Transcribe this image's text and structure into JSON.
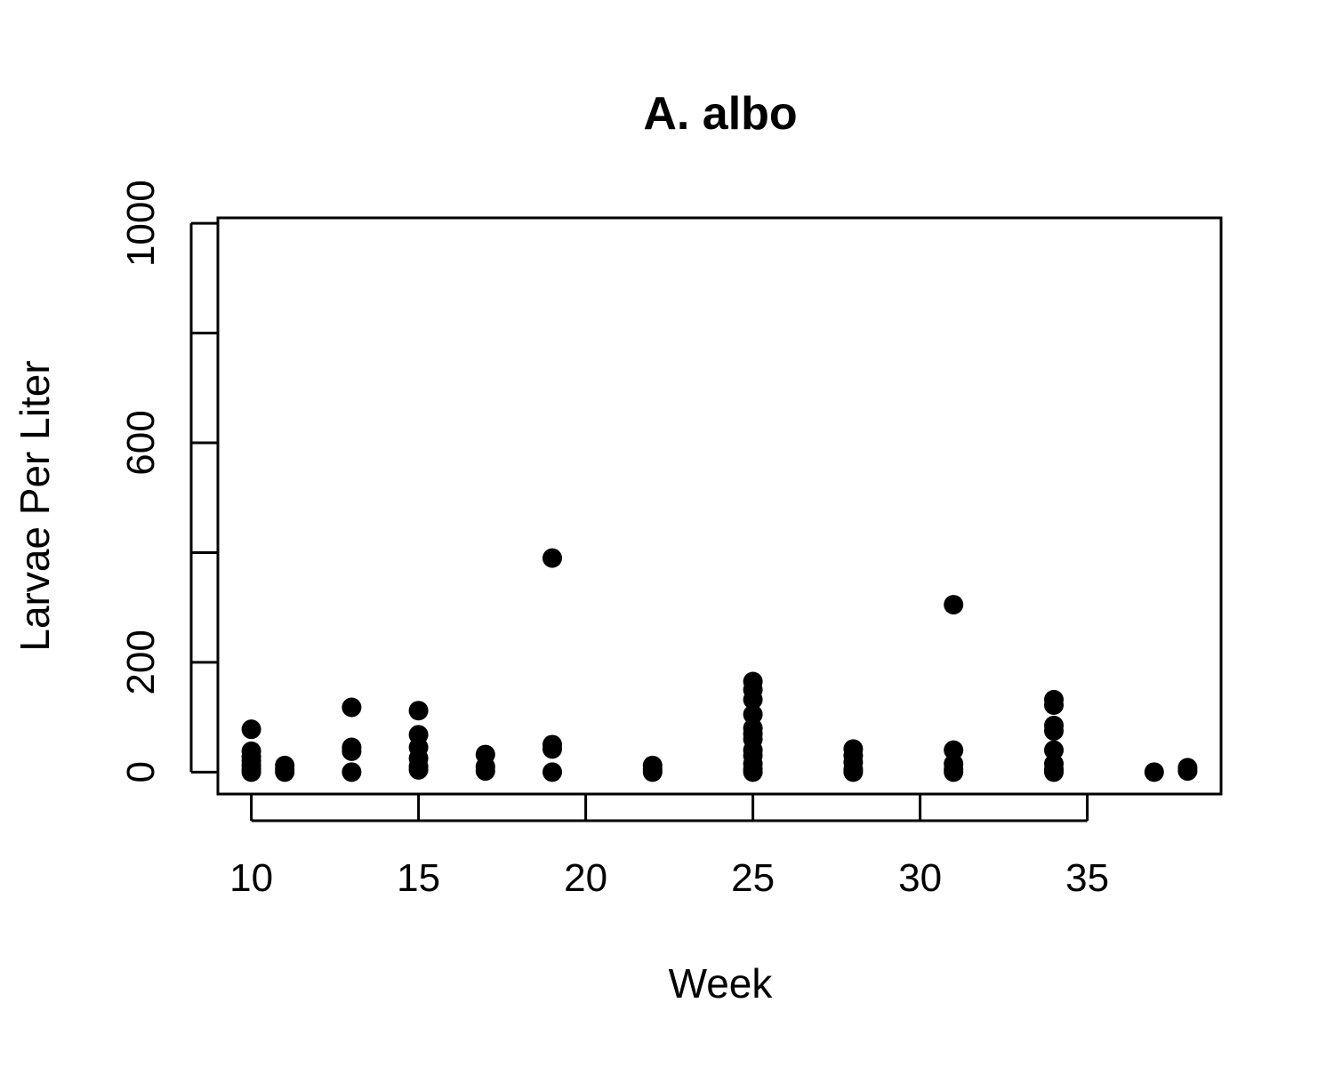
{
  "chart_data": {
    "type": "scatter",
    "title": "A. albo",
    "xlabel": "Week",
    "ylabel": "Larvae Per Liter",
    "xlim": [
      9,
      39
    ],
    "ylim": [
      -40,
      1010
    ],
    "xticks": [
      10,
      15,
      20,
      25,
      30,
      35
    ],
    "yticks": [
      0,
      200,
      400,
      600,
      800,
      1000
    ],
    "xtick_labels": [
      "10",
      "15",
      "20",
      "25",
      "30",
      "35"
    ],
    "ytick_labels": [
      "0",
      "200",
      "",
      "600",
      "",
      "1000"
    ],
    "grid": false,
    "marker_color": "#000000",
    "points": [
      {
        "x": 10,
        "y": 78
      },
      {
        "x": 10,
        "y": 38
      },
      {
        "x": 10,
        "y": 28
      },
      {
        "x": 10,
        "y": 20
      },
      {
        "x": 10,
        "y": 12
      },
      {
        "x": 10,
        "y": 5
      },
      {
        "x": 10,
        "y": 0
      },
      {
        "x": 11,
        "y": 12
      },
      {
        "x": 11,
        "y": 5
      },
      {
        "x": 11,
        "y": 0
      },
      {
        "x": 13,
        "y": 118
      },
      {
        "x": 13,
        "y": 45
      },
      {
        "x": 13,
        "y": 38
      },
      {
        "x": 13,
        "y": 0
      },
      {
        "x": 15,
        "y": 112
      },
      {
        "x": 15,
        "y": 68
      },
      {
        "x": 15,
        "y": 45
      },
      {
        "x": 15,
        "y": 25
      },
      {
        "x": 15,
        "y": 10
      },
      {
        "x": 15,
        "y": 4
      },
      {
        "x": 17,
        "y": 32
      },
      {
        "x": 17,
        "y": 10
      },
      {
        "x": 17,
        "y": 2
      },
      {
        "x": 19,
        "y": 390
      },
      {
        "x": 19,
        "y": 50
      },
      {
        "x": 19,
        "y": 42
      },
      {
        "x": 19,
        "y": 0
      },
      {
        "x": 22,
        "y": 12
      },
      {
        "x": 22,
        "y": 5
      },
      {
        "x": 22,
        "y": 0
      },
      {
        "x": 25,
        "y": 165
      },
      {
        "x": 25,
        "y": 150
      },
      {
        "x": 25,
        "y": 132
      },
      {
        "x": 25,
        "y": 105
      },
      {
        "x": 25,
        "y": 80
      },
      {
        "x": 25,
        "y": 70
      },
      {
        "x": 25,
        "y": 60
      },
      {
        "x": 25,
        "y": 40
      },
      {
        "x": 25,
        "y": 30
      },
      {
        "x": 25,
        "y": 15
      },
      {
        "x": 25,
        "y": 5
      },
      {
        "x": 25,
        "y": 0
      },
      {
        "x": 28,
        "y": 42
      },
      {
        "x": 28,
        "y": 30
      },
      {
        "x": 28,
        "y": 18
      },
      {
        "x": 28,
        "y": 5
      },
      {
        "x": 28,
        "y": 0
      },
      {
        "x": 31,
        "y": 305
      },
      {
        "x": 31,
        "y": 40
      },
      {
        "x": 31,
        "y": 15
      },
      {
        "x": 31,
        "y": 5
      },
      {
        "x": 31,
        "y": 0
      },
      {
        "x": 34,
        "y": 132
      },
      {
        "x": 34,
        "y": 122
      },
      {
        "x": 34,
        "y": 85
      },
      {
        "x": 34,
        "y": 75
      },
      {
        "x": 34,
        "y": 40
      },
      {
        "x": 34,
        "y": 15
      },
      {
        "x": 34,
        "y": 5
      },
      {
        "x": 34,
        "y": 0
      },
      {
        "x": 37,
        "y": 0
      },
      {
        "x": 38,
        "y": 8
      },
      {
        "x": 38,
        "y": 2
      }
    ]
  }
}
